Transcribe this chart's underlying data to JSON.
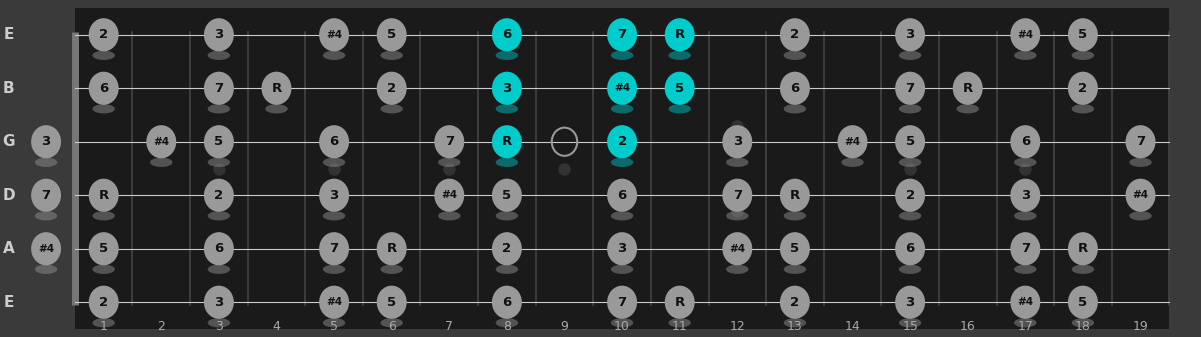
{
  "bg_outer": "#3a3a3a",
  "bg_fretboard": "#1a1a1a",
  "fret_line_color": "#444444",
  "nut_color": "#777777",
  "string_color": "#cccccc",
  "marker_color": "#333333",
  "note_gray": "#999999",
  "note_gray_border": "#bbbbbb",
  "note_cyan": "#00cccc",
  "note_text_dark": "#111111",
  "string_label_color": "#cccccc",
  "fret_label_color": "#aaaaaa",
  "string_names": [
    "E",
    "B",
    "G",
    "D",
    "A",
    "E"
  ],
  "num_frets": 19,
  "fret_markers_single": [
    3,
    5,
    7,
    9,
    15,
    17
  ],
  "fret_markers_double": [
    12
  ],
  "notes": [
    {
      "string": 0,
      "fret": 1,
      "label": "2",
      "cyan": false
    },
    {
      "string": 0,
      "fret": 3,
      "label": "3",
      "cyan": false
    },
    {
      "string": 0,
      "fret": 5,
      "label": "#4",
      "cyan": false
    },
    {
      "string": 0,
      "fret": 6,
      "label": "5",
      "cyan": false
    },
    {
      "string": 0,
      "fret": 8,
      "label": "6",
      "cyan": true
    },
    {
      "string": 0,
      "fret": 10,
      "label": "7",
      "cyan": true
    },
    {
      "string": 0,
      "fret": 11,
      "label": "R",
      "cyan": true
    },
    {
      "string": 0,
      "fret": 13,
      "label": "2",
      "cyan": false
    },
    {
      "string": 0,
      "fret": 15,
      "label": "3",
      "cyan": false
    },
    {
      "string": 0,
      "fret": 17,
      "label": "#4",
      "cyan": false
    },
    {
      "string": 0,
      "fret": 18,
      "label": "5",
      "cyan": false
    },
    {
      "string": 1,
      "fret": 1,
      "label": "6",
      "cyan": false
    },
    {
      "string": 1,
      "fret": 3,
      "label": "7",
      "cyan": false
    },
    {
      "string": 1,
      "fret": 4,
      "label": "R",
      "cyan": false
    },
    {
      "string": 1,
      "fret": 6,
      "label": "2",
      "cyan": false
    },
    {
      "string": 1,
      "fret": 8,
      "label": "3",
      "cyan": true
    },
    {
      "string": 1,
      "fret": 10,
      "label": "#4",
      "cyan": true
    },
    {
      "string": 1,
      "fret": 11,
      "label": "5",
      "cyan": true
    },
    {
      "string": 1,
      "fret": 13,
      "label": "6",
      "cyan": false
    },
    {
      "string": 1,
      "fret": 15,
      "label": "7",
      "cyan": false
    },
    {
      "string": 1,
      "fret": 16,
      "label": "R",
      "cyan": false
    },
    {
      "string": 1,
      "fret": 18,
      "label": "2",
      "cyan": false
    },
    {
      "string": 2,
      "fret": 0,
      "label": "3",
      "cyan": false
    },
    {
      "string": 2,
      "fret": 2,
      "label": "#4",
      "cyan": false
    },
    {
      "string": 2,
      "fret": 3,
      "label": "5",
      "cyan": false
    },
    {
      "string": 2,
      "fret": 5,
      "label": "6",
      "cyan": false
    },
    {
      "string": 2,
      "fret": 7,
      "label": "7",
      "cyan": false
    },
    {
      "string": 2,
      "fret": 8,
      "label": "R",
      "cyan": true
    },
    {
      "string": 2,
      "fret": 9,
      "label": "",
      "cyan": false,
      "open": true
    },
    {
      "string": 2,
      "fret": 10,
      "label": "2",
      "cyan": true
    },
    {
      "string": 2,
      "fret": 12,
      "label": "3",
      "cyan": false
    },
    {
      "string": 2,
      "fret": 14,
      "label": "#4",
      "cyan": false
    },
    {
      "string": 2,
      "fret": 15,
      "label": "5",
      "cyan": false
    },
    {
      "string": 2,
      "fret": 17,
      "label": "6",
      "cyan": false
    },
    {
      "string": 2,
      "fret": 19,
      "label": "7",
      "cyan": false
    },
    {
      "string": 3,
      "fret": 0,
      "label": "7",
      "cyan": false
    },
    {
      "string": 3,
      "fret": 1,
      "label": "R",
      "cyan": false
    },
    {
      "string": 3,
      "fret": 3,
      "label": "2",
      "cyan": false
    },
    {
      "string": 3,
      "fret": 5,
      "label": "3",
      "cyan": false
    },
    {
      "string": 3,
      "fret": 7,
      "label": "#4",
      "cyan": false
    },
    {
      "string": 3,
      "fret": 8,
      "label": "5",
      "cyan": false
    },
    {
      "string": 3,
      "fret": 10,
      "label": "6",
      "cyan": false
    },
    {
      "string": 3,
      "fret": 12,
      "label": "7",
      "cyan": false
    },
    {
      "string": 3,
      "fret": 13,
      "label": "R",
      "cyan": false
    },
    {
      "string": 3,
      "fret": 15,
      "label": "2",
      "cyan": false
    },
    {
      "string": 3,
      "fret": 17,
      "label": "3",
      "cyan": false
    },
    {
      "string": 3,
      "fret": 19,
      "label": "#4",
      "cyan": false
    },
    {
      "string": 4,
      "fret": 0,
      "label": "#4",
      "cyan": false
    },
    {
      "string": 4,
      "fret": 1,
      "label": "5",
      "cyan": false
    },
    {
      "string": 4,
      "fret": 3,
      "label": "6",
      "cyan": false
    },
    {
      "string": 4,
      "fret": 5,
      "label": "7",
      "cyan": false
    },
    {
      "string": 4,
      "fret": 6,
      "label": "R",
      "cyan": false
    },
    {
      "string": 4,
      "fret": 8,
      "label": "2",
      "cyan": false
    },
    {
      "string": 4,
      "fret": 10,
      "label": "3",
      "cyan": false
    },
    {
      "string": 4,
      "fret": 12,
      "label": "#4",
      "cyan": false
    },
    {
      "string": 4,
      "fret": 13,
      "label": "5",
      "cyan": false
    },
    {
      "string": 4,
      "fret": 15,
      "label": "6",
      "cyan": false
    },
    {
      "string": 4,
      "fret": 17,
      "label": "7",
      "cyan": false
    },
    {
      "string": 4,
      "fret": 18,
      "label": "R",
      "cyan": false
    },
    {
      "string": 5,
      "fret": 1,
      "label": "2",
      "cyan": false
    },
    {
      "string": 5,
      "fret": 3,
      "label": "3",
      "cyan": false
    },
    {
      "string": 5,
      "fret": 5,
      "label": "#4",
      "cyan": false
    },
    {
      "string": 5,
      "fret": 6,
      "label": "5",
      "cyan": false
    },
    {
      "string": 5,
      "fret": 8,
      "label": "6",
      "cyan": false
    },
    {
      "string": 5,
      "fret": 10,
      "label": "7",
      "cyan": false
    },
    {
      "string": 5,
      "fret": 11,
      "label": "R",
      "cyan": false
    },
    {
      "string": 5,
      "fret": 13,
      "label": "2",
      "cyan": false
    },
    {
      "string": 5,
      "fret": 15,
      "label": "3",
      "cyan": false
    },
    {
      "string": 5,
      "fret": 17,
      "label": "#4",
      "cyan": false
    },
    {
      "string": 5,
      "fret": 18,
      "label": "5",
      "cyan": false
    }
  ]
}
